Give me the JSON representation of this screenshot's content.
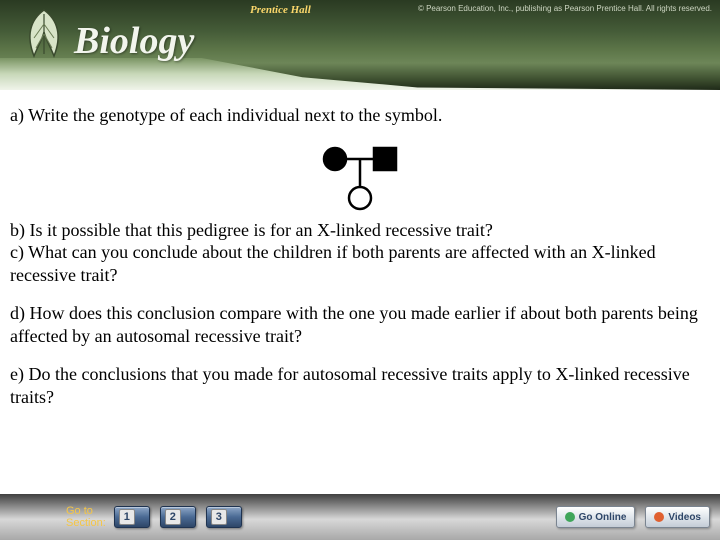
{
  "header": {
    "brand_sub": "Prentice Hall",
    "brand_title": "Biology",
    "copyright": "© Pearson Education, Inc., publishing as Pearson Prentice Hall. All rights reserved.",
    "bg_gradient": [
      "#2a3a22",
      "#455c38",
      "#5c7548",
      "#3e5030"
    ],
    "title_color": "#f2f5ed",
    "prentice_color": "#fbd76b"
  },
  "questions": {
    "a": "a) Write the genotype of each individual next to the symbol.",
    "b": "b) Is it possible that this pedigree is for an X-linked recessive trait?",
    "c": "c) What can you conclude about the children if both parents are affected with an X-linked recessive trait?",
    "d": "d) How does this conclusion compare with the one you made earlier if about both parents being affected by an autosomal recessive trait?",
    "e": "e) Do the conclusions that you made for autosomal recessive traits apply to X-linked recessive traits?"
  },
  "pedigree": {
    "type": "pedigree-diagram",
    "parents": [
      {
        "shape": "circle",
        "filled": true,
        "label": "affected-female"
      },
      {
        "shape": "square",
        "filled": true,
        "label": "affected-male"
      }
    ],
    "children": [
      {
        "shape": "circle",
        "filled": false,
        "label": "unaffected-female"
      }
    ],
    "stroke": "#000000",
    "fill": "#000000",
    "symbol_size": 22,
    "line_width": 2.5
  },
  "footer": {
    "goto_label": "Go to Section:",
    "nav_numbers": [
      "1",
      "2",
      "3"
    ],
    "links": [
      {
        "label": "Go Online",
        "dot_color": "#3fa65a"
      },
      {
        "label": "Videos",
        "dot_color": "#e06030"
      }
    ],
    "goto_color": "#f5c646",
    "button_gradient": [
      "#8fa8c8",
      "#4a6a94",
      "#2e4668"
    ]
  },
  "body_font_size": 18,
  "body_color": "#000000"
}
